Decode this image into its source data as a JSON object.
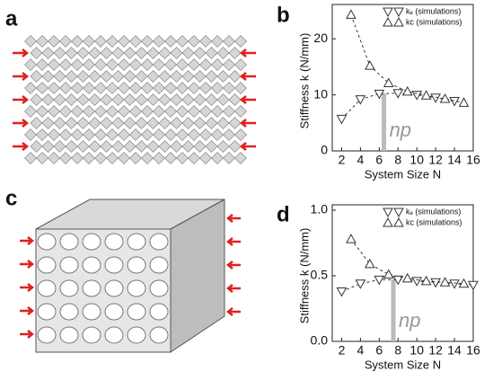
{
  "panel_labels": [
    "a",
    "b",
    "c",
    "d"
  ],
  "chart_data": [
    {
      "type": "line",
      "ylabel": "Stiffness k (N/mm)",
      "xlabel": "System Size N",
      "xlim": [
        1,
        16
      ],
      "xticks": [
        2,
        4,
        6,
        8,
        10,
        12,
        14,
        16
      ],
      "ylim": [
        0,
        25
      ],
      "yticks": [
        0,
        10,
        20
      ],
      "legend": "upper right",
      "annotation": {
        "text": "np",
        "x": 6.5
      },
      "series": [
        {
          "name": "kₑ (simulations)",
          "color": "#333333",
          "marker": "down",
          "x": [
            2,
            4,
            6,
            8,
            10,
            12,
            14
          ],
          "values": [
            5.7,
            9.2,
            10.2,
            10.3,
            10.0,
            9.5,
            8.9
          ]
        },
        {
          "name": "kc (simulations)",
          "color": "#333333",
          "marker": "up",
          "x": [
            3,
            5,
            7,
            9,
            11,
            13,
            15
          ],
          "values": [
            24.3,
            15.2,
            12.1,
            10.6,
            9.9,
            9.3,
            8.6
          ]
        }
      ]
    },
    {
      "type": "line",
      "ylabel": "Stiffness k (N/mm)",
      "xlabel": "System Size N",
      "xlim": [
        1,
        16
      ],
      "xticks": [
        2,
        4,
        6,
        8,
        10,
        12,
        14,
        16
      ],
      "ylim": [
        0,
        1
      ],
      "yticks": [
        {
          "value": 0,
          "label": "0.0"
        },
        {
          "value": 0.5,
          "label": "0.5"
        },
        {
          "value": 1,
          "label": "1.0"
        }
      ],
      "legend": "upper right",
      "annotation": {
        "text": "np",
        "x": 7.5
      },
      "series": [
        {
          "name": "kₑ (simulations)",
          "color": "#333333",
          "marker": "down",
          "x": [
            2,
            4,
            6,
            8,
            10,
            12,
            14,
            16
          ],
          "values": [
            0.38,
            0.44,
            0.47,
            0.47,
            0.46,
            0.45,
            0.44,
            0.43
          ]
        },
        {
          "name": "kc (simulations)",
          "color": "#333333",
          "marker": "up",
          "x": [
            3,
            5,
            7,
            9,
            11,
            13,
            15
          ],
          "values": [
            0.78,
            0.59,
            0.51,
            0.48,
            0.46,
            0.45,
            0.44
          ]
        }
      ]
    }
  ]
}
